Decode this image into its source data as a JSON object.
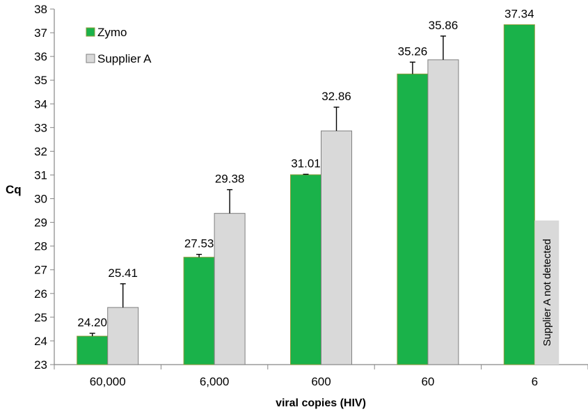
{
  "chart_data": {
    "type": "bar",
    "categories": [
      "60,000",
      "6,000",
      "600",
      "60",
      "6"
    ],
    "series": [
      {
        "name": "Zymo",
        "color": "#1ab24a",
        "values": [
          24.2,
          27.53,
          31.01,
          35.26,
          37.34
        ],
        "labels": [
          "24.20",
          "27.53",
          "31.01",
          "35.26",
          "37.34"
        ],
        "error": [
          0.12,
          0.12,
          0.02,
          0.5,
          null
        ]
      },
      {
        "name": "Supplier A",
        "color": "#d9d9d9",
        "values": [
          25.41,
          29.38,
          32.86,
          35.86,
          null
        ],
        "labels": [
          "25.41",
          "29.38",
          "32.86",
          "35.86",
          null
        ],
        "error": [
          1.0,
          1.0,
          1.0,
          1.0,
          null
        ]
      }
    ],
    "xlabel": "viral copies (HIV)",
    "ylabel": "Cq",
    "ylim": [
      23,
      38
    ],
    "yticks": [
      23,
      24,
      25,
      26,
      27,
      28,
      29,
      30,
      31,
      32,
      33,
      34,
      35,
      36,
      37,
      38
    ],
    "legend_position": "top-left",
    "grid": false,
    "annotations": [
      {
        "category": "6",
        "series": "Supplier A",
        "text": "Supplier A not detected",
        "value": 29.08
      }
    ]
  }
}
